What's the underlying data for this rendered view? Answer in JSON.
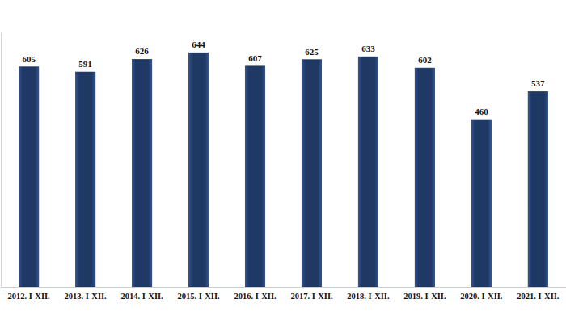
{
  "chart_data": {
    "type": "bar",
    "categories": [
      "2012. I-XII.",
      "2013. I-XII.",
      "2014. I-XII.",
      "2015. I-XII.",
      "2016. I-XII.",
      "2017. I-XII.",
      "2018. I-XII.",
      "2019. I-XII.",
      "2020. I-XII.",
      "2021. I-XII."
    ],
    "values": [
      605,
      591,
      626,
      644,
      607,
      625,
      633,
      602,
      460,
      537
    ],
    "color": "#1f3864",
    "ylim": [
      0,
      700
    ],
    "grid": false,
    "data_labels": true,
    "tick_labels": "x"
  }
}
